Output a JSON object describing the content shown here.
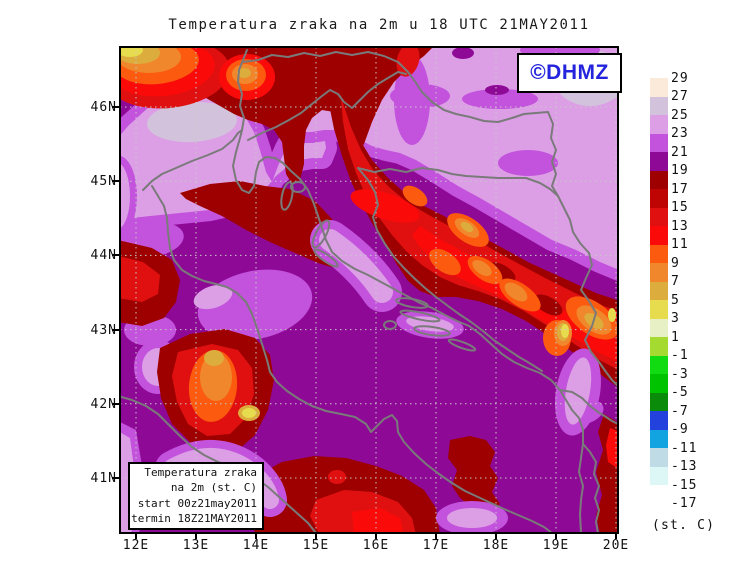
{
  "title": "Temperatura zraka na 2m u 18 UTC 21MAY2011",
  "badge": {
    "text": "©DHMZ",
    "color": "#2424DE"
  },
  "info_box": {
    "lines": [
      "Temperatura zraka",
      "na 2m (st. C)",
      "start 00z21may2011",
      "termin 18Z21MAY2011"
    ]
  },
  "x_axis": {
    "labels": [
      "12E",
      "13E",
      "14E",
      "15E",
      "16E",
      "17E",
      "18E",
      "19E",
      "20E"
    ]
  },
  "y_axis": {
    "labels": [
      "46N",
      "45N",
      "44N",
      "43N",
      "42N",
      "41N"
    ]
  },
  "colorbar": {
    "levels": [
      "29",
      "27",
      "25",
      "23",
      "21",
      "19",
      "17",
      "15",
      "13",
      "11",
      "9",
      "7",
      "5",
      "3",
      "1",
      "-1",
      "-3",
      "-5",
      "-7",
      "-9",
      "-11",
      "-13",
      "-15",
      "-17"
    ],
    "colors": [
      "#FBE9DA",
      "#D2C2DB",
      "#DC9FE6",
      "#C353DC",
      "#8E0A96",
      "#9E0000",
      "#BF0404",
      "#E01010",
      "#FB0A0A",
      "#FB5A0F",
      "#F0872D",
      "#DCAC3C",
      "#E7DC4E",
      "#E7EFC5",
      "#A5DB31",
      "#11DC11",
      "#00C300",
      "#0A8C0A",
      "#2341DC",
      "#11A4E1",
      "#BFDCE6",
      "#DDF6F6",
      "#FFFFFF"
    ],
    "unit": "(st. C)"
  },
  "palette": {
    "t27": "#D2C2DB",
    "t25": "#DC9FE6",
    "t23": "#C353DC",
    "t21": "#8E0A96",
    "t19": "#9E0000",
    "t17": "#BF0404",
    "t15": "#E01010",
    "t13": "#FB0A0A",
    "t11": "#FB5A0F",
    "t9": "#F0872D",
    "t7": "#DCAC3C",
    "t5": "#E7DC4E",
    "coast": "#7A7A7A",
    "grid": "#C8C8C8",
    "frame": "#000000"
  }
}
